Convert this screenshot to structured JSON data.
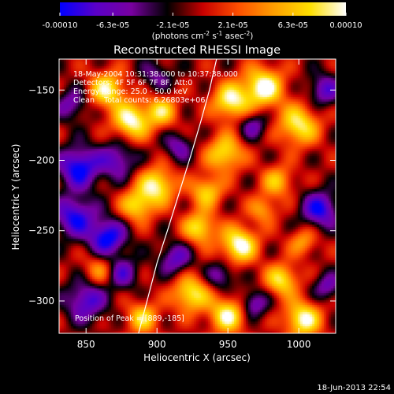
{
  "chart_data": {
    "type": "heatmap",
    "title": "Reconstructed RHESSI Image",
    "xlabel": "Heliocentric X (arcsec)",
    "ylabel": "Heliocentric Y (arcsec)",
    "xlim": [
      831,
      1026
    ],
    "ylim": [
      -323,
      -128
    ],
    "xticks": [
      850,
      900,
      950,
      1000
    ],
    "yticks": [
      -150,
      -200,
      -250,
      -300
    ],
    "colorbar": {
      "ticks": [
        "-0.00010",
        "-6.3e-05",
        "-2.1e-05",
        "2.1e-05",
        "6.3e-05",
        "0.00010"
      ],
      "tick_values": [
        -0.0001,
        -6.3e-05,
        -2.1e-05,
        2.1e-05,
        6.3e-05,
        0.0001
      ],
      "range": [
        -0.0001,
        0.0001
      ],
      "unit_label": "(photons cm",
      "unit_exp1": "-2",
      "unit_mid": " s",
      "unit_exp2": "-1",
      "unit_mid2": " asec",
      "unit_exp3": "-2",
      "unit_end": ")",
      "colormap": [
        "#0000ff",
        "#5a00c8",
        "#7800a0",
        "#000000",
        "#c80000",
        "#ff5000",
        "#ffa000",
        "#ffe000",
        "#ffffff"
      ]
    },
    "annotations": {
      "line1": "18-May-2004 10:31:38.000 to 10:37:38.000",
      "line2": "Detectors: 4F 5F 6F 7F 8F, Att:0",
      "line3": "Energy Range: 25.0 - 50.0 keV",
      "line4": "Clean    Total counts: 6.26803e+06",
      "peak": "Position of Peak = [889,-185]"
    },
    "limb": [
      [
        887,
        -323
      ],
      [
        893,
        -300
      ],
      [
        900,
        -273
      ],
      [
        908,
        -248
      ],
      [
        916,
        -222
      ],
      [
        924,
        -196
      ],
      [
        931,
        -172
      ],
      [
        937,
        -150
      ],
      [
        942,
        -128
      ]
    ],
    "blobs": [
      {
        "x": 975,
        "y": -148,
        "v": 1.0,
        "s": 10
      },
      {
        "x": 952,
        "y": -158,
        "v": 0.9,
        "s": 9
      },
      {
        "x": 1000,
        "y": -175,
        "v": 0.85,
        "s": 10
      },
      {
        "x": 948,
        "y": -195,
        "v": 0.8,
        "s": 9
      },
      {
        "x": 865,
        "y": -150,
        "v": 0.85,
        "s": 9
      },
      {
        "x": 882,
        "y": -172,
        "v": 0.95,
        "s": 9
      },
      {
        "x": 903,
        "y": -165,
        "v": 0.7,
        "s": 8
      },
      {
        "x": 900,
        "y": -218,
        "v": 0.9,
        "s": 9
      },
      {
        "x": 886,
        "y": -232,
        "v": 0.75,
        "s": 8
      },
      {
        "x": 935,
        "y": -222,
        "v": 0.7,
        "s": 8
      },
      {
        "x": 985,
        "y": -215,
        "v": 0.6,
        "s": 8
      },
      {
        "x": 958,
        "y": -260,
        "v": 1.0,
        "s": 9
      },
      {
        "x": 930,
        "y": -248,
        "v": 0.8,
        "s": 8
      },
      {
        "x": 1003,
        "y": -258,
        "v": 0.5,
        "s": 7
      },
      {
        "x": 924,
        "y": -295,
        "v": 0.85,
        "s": 9
      },
      {
        "x": 950,
        "y": -310,
        "v": 0.9,
        "s": 9
      },
      {
        "x": 1003,
        "y": -313,
        "v": 0.95,
        "s": 9
      },
      {
        "x": 988,
        "y": -285,
        "v": 0.8,
        "s": 8
      },
      {
        "x": 890,
        "y": -312,
        "v": 0.7,
        "s": 8
      },
      {
        "x": 860,
        "y": -278,
        "v": 0.5,
        "s": 8
      },
      {
        "x": 975,
        "y": -235,
        "v": 0.5,
        "s": 7
      },
      {
        "x": 968,
        "y": -175,
        "v": -0.5,
        "s": 7
      },
      {
        "x": 845,
        "y": -205,
        "v": -0.9,
        "s": 10
      },
      {
        "x": 842,
        "y": -240,
        "v": -0.8,
        "s": 10
      },
      {
        "x": 865,
        "y": -255,
        "v": -0.9,
        "s": 9
      },
      {
        "x": 872,
        "y": -200,
        "v": -0.6,
        "s": 9
      },
      {
        "x": 850,
        "y": -300,
        "v": -0.7,
        "s": 10
      },
      {
        "x": 875,
        "y": -280,
        "v": -0.6,
        "s": 8
      },
      {
        "x": 1018,
        "y": -150,
        "v": -0.6,
        "s": 8
      },
      {
        "x": 915,
        "y": -190,
        "v": -0.5,
        "s": 7
      },
      {
        "x": 913,
        "y": -270,
        "v": -0.6,
        "s": 8
      },
      {
        "x": 945,
        "y": -282,
        "v": -0.5,
        "s": 7
      },
      {
        "x": 1015,
        "y": -235,
        "v": -0.8,
        "s": 9
      },
      {
        "x": 968,
        "y": -302,
        "v": -0.6,
        "s": 7
      },
      {
        "x": 900,
        "y": -140,
        "v": -0.4,
        "s": 8
      },
      {
        "x": 1020,
        "y": -290,
        "v": -0.5,
        "s": 7
      },
      {
        "x": 840,
        "y": -160,
        "v": -0.5,
        "s": 8
      }
    ]
  },
  "footer": {
    "timestamp": "18-Jun-2013 22:54"
  }
}
